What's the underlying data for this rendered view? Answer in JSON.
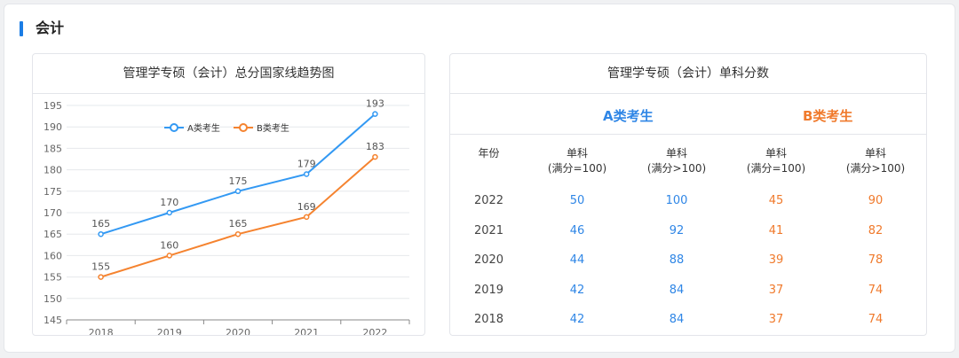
{
  "section": {
    "title": "会计"
  },
  "chart_card": {
    "title": "管理学专硕（会计）总分国家线趋势图"
  },
  "table_card": {
    "title": "管理学专硕（会计）单科分数",
    "group_a": "A类考生",
    "group_b": "B类考生",
    "col_year": "年份",
    "col_headers": [
      {
        "line1": "单科",
        "line2": "(满分=100)"
      },
      {
        "line1": "单科",
        "line2": "(满分>100)"
      },
      {
        "line1": "单科",
        "line2": "(满分=100)"
      },
      {
        "line1": "单科",
        "line2": "(满分>100)"
      }
    ],
    "rows": [
      {
        "year": "2022",
        "a1": "50",
        "a2": "100",
        "b1": "45",
        "b2": "90"
      },
      {
        "year": "2021",
        "a1": "46",
        "a2": "92",
        "b1": "41",
        "b2": "82"
      },
      {
        "year": "2020",
        "a1": "44",
        "a2": "88",
        "b1": "39",
        "b2": "78"
      },
      {
        "year": "2019",
        "a1": "42",
        "a2": "84",
        "b1": "37",
        "b2": "74"
      },
      {
        "year": "2018",
        "a1": "42",
        "a2": "84",
        "b1": "37",
        "b2": "74"
      }
    ]
  },
  "colors": {
    "accent": "#1b7de5",
    "series_a": "#3399f3",
    "series_b": "#f5832f",
    "value_a": "#2f86e6",
    "value_b": "#f07a2c"
  },
  "chart_data": {
    "type": "line",
    "x": [
      "2018",
      "2019",
      "2020",
      "2021",
      "2022"
    ],
    "series": [
      {
        "name": "A类考生",
        "values": [
          165,
          170,
          175,
          179,
          193
        ]
      },
      {
        "name": "B类考生",
        "values": [
          155,
          160,
          165,
          169,
          183
        ]
      }
    ],
    "yticks": [
      145,
      150,
      155,
      160,
      165,
      170,
      175,
      180,
      185,
      190,
      195
    ],
    "ylim": [
      145,
      195
    ],
    "legend": "top-center",
    "grid": true
  }
}
